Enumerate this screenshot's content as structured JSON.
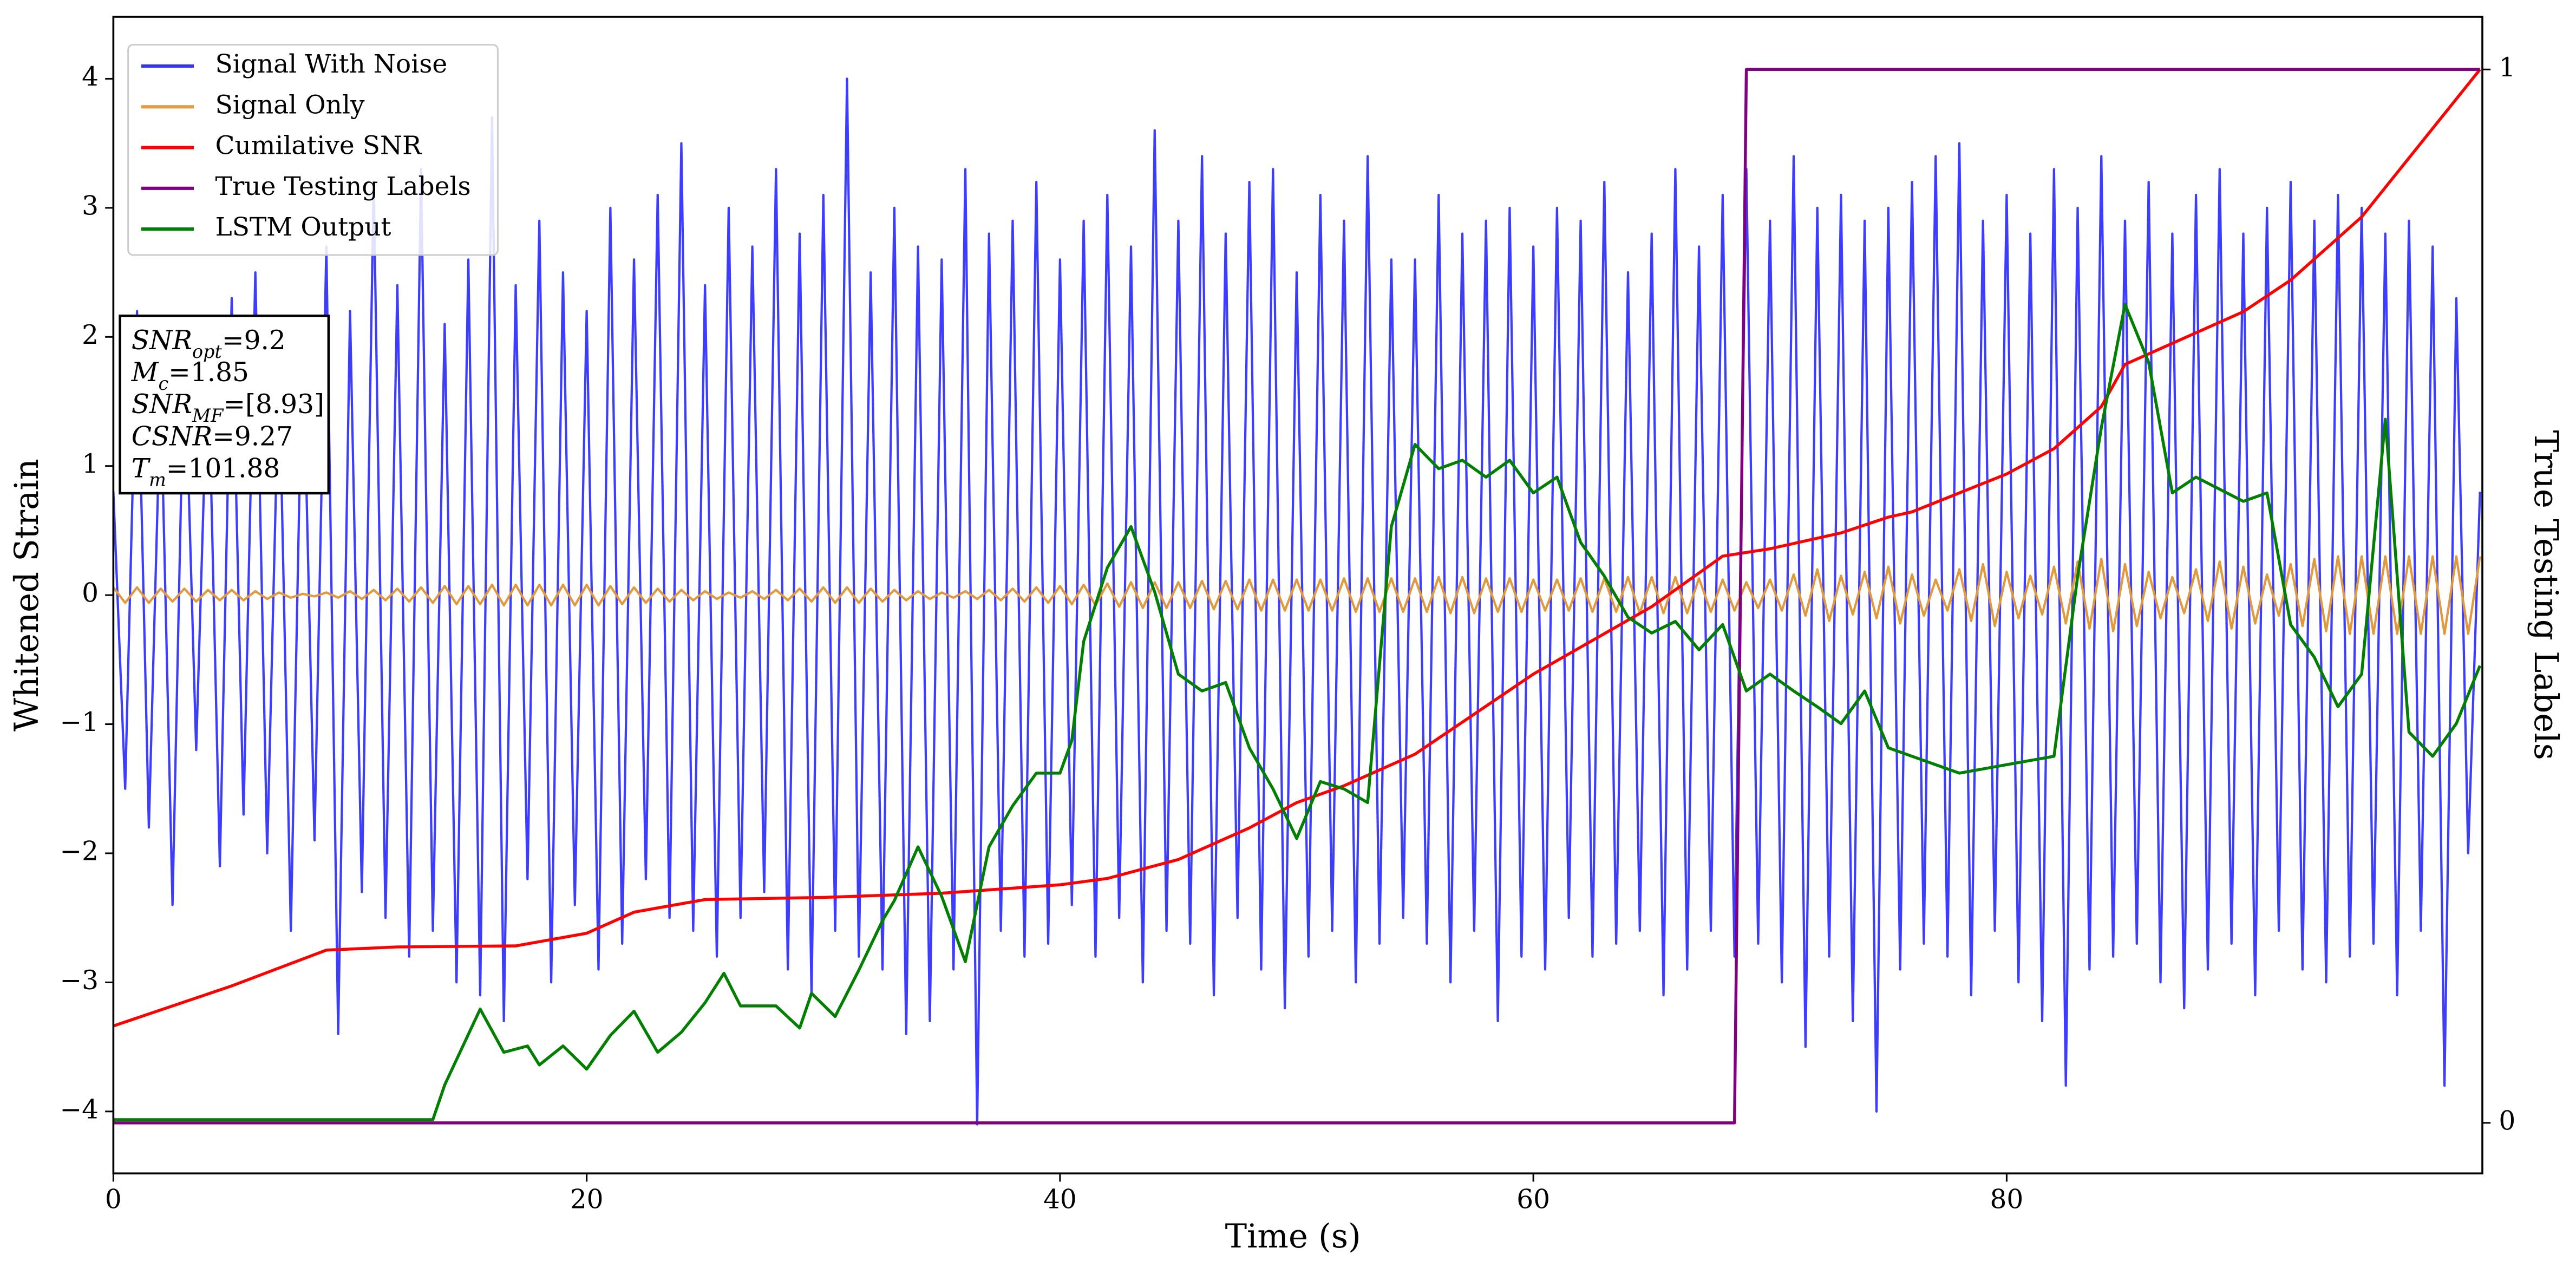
{
  "chart_data": {
    "type": "line",
    "xlabel": "Time (s)",
    "ylabel": "Whitened Strain",
    "y2label": "True Testing Labels",
    "xlim": [
      0,
      100.1
    ],
    "ylim": [
      -4.48,
      4.48
    ],
    "y2lim": [
      -0.048,
      1.05
    ],
    "xticks": [
      0,
      20,
      40,
      60,
      80
    ],
    "yticks": [
      {
        "value": -4,
        "label": "−4"
      },
      {
        "value": -3,
        "label": "−3"
      },
      {
        "value": -2,
        "label": "−2"
      },
      {
        "value": -1,
        "label": "−1"
      },
      0,
      1,
      2,
      3,
      4
    ],
    "y2ticks": [
      0,
      1
    ],
    "grid": false,
    "legend": "upper left",
    "x": [
      0,
      0.5,
      1,
      1.5,
      2,
      2.5,
      3,
      3.5,
      4,
      4.5,
      5,
      5.5,
      6,
      6.5,
      7,
      7.5,
      8,
      8.5,
      9,
      9.5,
      10,
      10.5,
      11,
      11.5,
      12,
      12.5,
      13,
      13.5,
      14,
      14.5,
      15,
      15.5,
      16,
      16.5,
      17,
      17.5,
      18,
      18.5,
      19,
      19.5,
      20,
      20.5,
      21,
      21.5,
      22,
      22.5,
      23,
      23.5,
      24,
      24.5,
      25,
      25.5,
      26,
      26.5,
      27,
      27.5,
      28,
      28.5,
      29,
      29.5,
      30,
      30.5,
      31,
      31.5,
      32,
      32.5,
      33,
      33.5,
      34,
      34.5,
      35,
      35.5,
      36,
      36.5,
      37,
      37.5,
      38,
      38.5,
      39,
      39.5,
      40,
      40.5,
      41,
      41.5,
      42,
      42.5,
      43,
      43.5,
      44,
      44.5,
      45,
      45.5,
      46,
      46.5,
      47,
      47.5,
      48,
      48.5,
      49,
      49.5,
      50,
      50.5,
      51,
      51.5,
      52,
      52.5,
      53,
      53.5,
      54,
      54.5,
      55,
      55.5,
      56,
      56.5,
      57,
      57.5,
      58,
      58.5,
      59,
      59.5,
      60,
      60.5,
      61,
      61.5,
      62,
      62.5,
      63,
      63.5,
      64,
      64.5,
      65,
      65.5,
      66,
      66.5,
      67,
      67.5,
      68,
      68.5,
      69,
      69.5,
      70,
      70.5,
      71,
      71.5,
      72,
      72.5,
      73,
      73.5,
      74,
      74.5,
      75,
      75.5,
      76,
      76.5,
      77,
      77.5,
      78,
      78.5,
      79,
      79.5,
      80,
      80.5,
      81,
      81.5,
      82,
      82.5,
      83,
      83.5,
      84,
      84.5,
      85,
      85.5,
      86,
      86.5,
      87,
      87.5,
      88,
      88.5,
      89,
      89.5,
      90,
      90.5,
      91,
      91.5,
      92,
      92.5,
      93,
      93.5,
      94,
      94.5,
      95,
      95.5,
      96,
      96.5,
      97,
      97.5,
      98,
      98.5,
      99,
      99.5,
      100
    ],
    "series": [
      {
        "name": "Signal With Noise",
        "color": "#3333ff",
        "values": [
          0.8,
          -1.5,
          2.2,
          -1.8,
          1.6,
          -2.4,
          2.0,
          -1.2,
          1.9,
          -2.1,
          2.3,
          -1.7,
          2.5,
          -2.0,
          1.8,
          -2.6,
          2.1,
          -1.9,
          2.7,
          -3.4,
          2.2,
          -2.3,
          3.2,
          -2.5,
          2.4,
          -2.8,
          3.3,
          -2.6,
          2.1,
          -3.0,
          2.6,
          -3.1,
          3.7,
          -3.3,
          2.4,
          -2.2,
          2.9,
          -3.0,
          2.5,
          -2.4,
          2.2,
          -2.9,
          3.0,
          -2.7,
          2.6,
          -2.2,
          3.1,
          -2.5,
          3.5,
          -2.6,
          2.4,
          -2.8,
          3.0,
          -2.5,
          2.7,
          -2.3,
          3.3,
          -2.9,
          2.8,
          -3.1,
          3.1,
          -2.6,
          4.0,
          -2.8,
          2.5,
          -2.9,
          3.0,
          -3.4,
          2.7,
          -3.3,
          2.6,
          -2.9,
          3.3,
          -4.1,
          2.8,
          -2.6,
          2.9,
          -2.8,
          3.2,
          -2.7,
          2.6,
          -2.4,
          2.9,
          -2.8,
          3.1,
          -2.5,
          2.7,
          -3.0,
          3.6,
          -2.6,
          2.9,
          -2.7,
          3.4,
          -3.1,
          2.8,
          -2.5,
          3.2,
          -2.9,
          3.3,
          -3.2,
          2.5,
          -2.8,
          3.1,
          -2.6,
          2.9,
          -3.0,
          3.4,
          -2.7,
          2.6,
          -2.5,
          2.6,
          -2.7,
          3.1,
          -3.0,
          2.8,
          -2.6,
          2.9,
          -3.3,
          3.0,
          -2.8,
          2.7,
          -2.9,
          3.0,
          -2.5,
          2.9,
          -2.8,
          3.2,
          -2.7,
          2.5,
          -2.6,
          2.8,
          -3.1,
          3.3,
          -2.9,
          2.7,
          -2.6,
          3.1,
          -2.8,
          3.3,
          -2.7,
          2.9,
          -3.0,
          3.4,
          -3.5,
          3.0,
          -2.8,
          3.1,
          -3.3,
          2.9,
          -4.0,
          3.0,
          -2.9,
          3.2,
          -2.7,
          3.4,
          -2.8,
          3.5,
          -3.1,
          2.9,
          -2.6,
          3.1,
          -3.0,
          2.8,
          -3.3,
          3.3,
          -3.8,
          3.0,
          -2.9,
          3.4,
          -2.8,
          2.9,
          -2.7,
          3.2,
          -3.0,
          2.8,
          -3.2,
          3.1,
          -2.9,
          3.3,
          -2.7,
          2.8,
          -3.1,
          3.0,
          -2.6,
          3.2,
          -2.9,
          2.9,
          -3.0,
          3.1,
          -2.8,
          3.0,
          -2.7,
          2.8,
          -3.1,
          2.9,
          -2.6,
          2.7,
          -3.8,
          2.3,
          -2.0,
          0.8
        ]
      },
      {
        "name": "Signal Only",
        "color": "#e09a3c",
        "values": [
          0.06,
          -0.06,
          0.06,
          -0.06,
          0.05,
          -0.05,
          0.05,
          -0.05,
          0.04,
          -0.04,
          0.04,
          -0.04,
          0.03,
          -0.03,
          0.02,
          -0.02,
          0.01,
          -0.01,
          0.02,
          -0.02,
          0.03,
          -0.03,
          0.04,
          -0.04,
          0.05,
          -0.05,
          0.06,
          -0.06,
          0.07,
          -0.07,
          0.07,
          -0.07,
          0.08,
          -0.08,
          0.08,
          -0.08,
          0.08,
          -0.08,
          0.08,
          -0.08,
          0.08,
          -0.08,
          0.07,
          -0.07,
          0.06,
          -0.06,
          0.05,
          -0.05,
          0.04,
          -0.04,
          0.03,
          -0.03,
          0.02,
          -0.02,
          0.03,
          -0.03,
          0.04,
          -0.04,
          0.05,
          -0.05,
          0.06,
          -0.06,
          0.06,
          -0.06,
          0.05,
          -0.05,
          0.04,
          -0.04,
          0.03,
          -0.03,
          0.02,
          -0.02,
          0.03,
          -0.03,
          0.04,
          -0.04,
          0.05,
          -0.05,
          0.06,
          -0.06,
          0.07,
          -0.07,
          0.08,
          -0.08,
          0.09,
          -0.09,
          0.1,
          -0.1,
          0.1,
          -0.1,
          0.1,
          -0.1,
          0.11,
          -0.11,
          0.11,
          -0.11,
          0.12,
          -0.12,
          0.12,
          -0.12,
          0.12,
          -0.12,
          0.12,
          -0.12,
          0.13,
          -0.13,
          0.13,
          -0.13,
          0.13,
          -0.13,
          0.13,
          -0.13,
          0.14,
          -0.14,
          0.14,
          -0.14,
          0.13,
          -0.13,
          0.13,
          -0.13,
          0.12,
          -0.12,
          0.12,
          -0.12,
          0.13,
          -0.13,
          0.13,
          -0.13,
          0.14,
          -0.14,
          0.14,
          -0.14,
          0.14,
          -0.14,
          0.13,
          -0.13,
          0.12,
          -0.12,
          0.1,
          -0.1,
          0.12,
          -0.12,
          0.16,
          -0.16,
          0.2,
          -0.2,
          0.15,
          -0.15,
          0.18,
          -0.18,
          0.22,
          -0.22,
          0.16,
          -0.16,
          0.12,
          -0.12,
          0.2,
          -0.2,
          0.24,
          -0.24,
          0.18,
          -0.18,
          0.15,
          -0.15,
          0.22,
          -0.22,
          0.26,
          -0.26,
          0.28,
          -0.28,
          0.24,
          -0.24,
          0.18,
          -0.18,
          0.14,
          -0.14,
          0.2,
          -0.2,
          0.26,
          -0.26,
          0.22,
          -0.22,
          0.16,
          -0.16,
          0.24,
          -0.24,
          0.28,
          -0.28,
          0.3,
          -0.3,
          0.3,
          -0.3,
          0.3,
          -0.3,
          0.3,
          -0.3,
          0.3,
          -0.3,
          0.3,
          -0.3,
          0.3
        ]
      },
      {
        "name": "Cumilative SNR",
        "color": "#ff0000",
        "axis": "y2",
        "x": [
          0,
          5,
          9,
          12,
          17,
          20,
          22,
          25,
          30,
          35,
          40,
          42,
          45,
          48,
          50,
          52,
          55,
          60,
          65,
          68,
          70,
          73,
          75,
          76,
          80,
          82,
          84,
          85,
          86,
          88,
          90,
          92,
          95,
          100
        ],
        "values": [
          0.092,
          0.13,
          0.164,
          0.167,
          0.168,
          0.18,
          0.2,
          0.212,
          0.214,
          0.218,
          0.226,
          0.232,
          0.25,
          0.28,
          0.304,
          0.32,
          0.35,
          0.426,
          0.49,
          0.538,
          0.545,
          0.56,
          0.575,
          0.58,
          0.616,
          0.64,
          0.68,
          0.72,
          0.73,
          0.75,
          0.77,
          0.8,
          0.86,
          1.0
        ]
      },
      {
        "name": "True Testing Labels",
        "color": "#800080",
        "axis": "y2",
        "x": [
          0,
          68.5,
          69,
          100
        ],
        "values": [
          0,
          0,
          1,
          1
        ]
      },
      {
        "name": "LSTM Output",
        "color": "#007f00",
        "axis": "y2",
        "x": [
          0,
          13.5,
          14,
          15.5,
          16.5,
          17.5,
          18,
          19,
          20,
          21,
          22,
          23,
          24,
          25,
          25.8,
          26.5,
          28,
          29,
          29.5,
          30.5,
          31.5,
          32.5,
          33,
          34,
          35,
          36,
          37,
          38,
          39,
          40,
          40.5,
          41,
          42,
          43,
          44,
          45,
          46,
          47,
          48,
          49,
          50,
          51,
          52,
          53,
          54,
          55,
          56,
          57,
          58,
          59,
          60,
          61,
          62,
          63,
          64,
          65,
          66,
          67,
          68,
          69,
          70,
          71,
          72,
          73,
          74,
          75,
          76,
          77,
          78,
          80,
          82,
          83,
          84,
          85,
          86,
          87,
          88,
          90,
          91,
          92,
          93,
          94,
          95,
          96,
          97,
          98,
          99,
          100
        ],
        "values": [
          0.003,
          0.003,
          0.036,
          0.108,
          0.067,
          0.073,
          0.055,
          0.073,
          0.051,
          0.083,
          0.106,
          0.067,
          0.086,
          0.114,
          0.142,
          0.111,
          0.111,
          0.09,
          0.123,
          0.101,
          0.145,
          0.192,
          0.211,
          0.262,
          0.215,
          0.153,
          0.262,
          0.301,
          0.332,
          0.332,
          0.363,
          0.457,
          0.527,
          0.566,
          0.504,
          0.426,
          0.41,
          0.418,
          0.356,
          0.317,
          0.27,
          0.324,
          0.317,
          0.304,
          0.566,
          0.644,
          0.621,
          0.629,
          0.613,
          0.629,
          0.598,
          0.613,
          0.551,
          0.519,
          0.48,
          0.465,
          0.476,
          0.449,
          0.473,
          0.41,
          0.426,
          0.41,
          0.395,
          0.379,
          0.41,
          0.356,
          0.348,
          0.34,
          0.332,
          0.34,
          0.348,
          0.519,
          0.66,
          0.777,
          0.722,
          0.598,
          0.613,
          0.59,
          0.598,
          0.473,
          0.442,
          0.395,
          0.426,
          0.668,
          0.371,
          0.348,
          0.379,
          0.434
        ]
      }
    ],
    "annotation": [
      {
        "main": "SNR",
        "sub": "opt",
        "rest": "=9.2"
      },
      {
        "main": "M",
        "sub": "c",
        "rest": "=1.85"
      },
      {
        "main": "SNR",
        "sub": "MF",
        "rest": "=[8.93]"
      },
      {
        "main": "CSNR",
        "rest": "=9.27"
      },
      {
        "main": "T",
        "sub": "m",
        "rest": "=101.88"
      }
    ]
  }
}
